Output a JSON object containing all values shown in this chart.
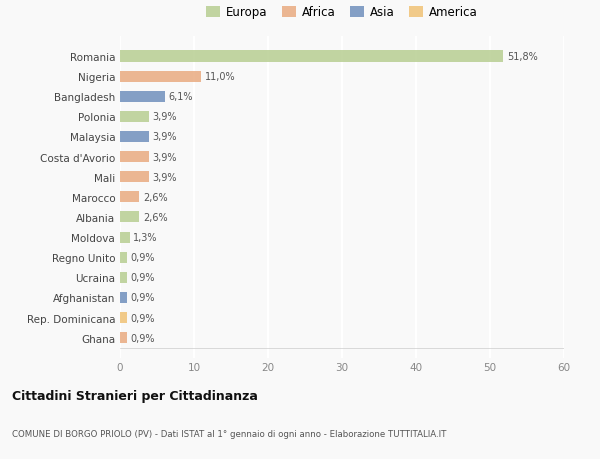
{
  "countries": [
    "Romania",
    "Nigeria",
    "Bangladesh",
    "Polonia",
    "Malaysia",
    "Costa d'Avorio",
    "Mali",
    "Marocco",
    "Albania",
    "Moldova",
    "Regno Unito",
    "Ucraina",
    "Afghanistan",
    "Rep. Dominicana",
    "Ghana"
  ],
  "values": [
    51.8,
    11.0,
    6.1,
    3.9,
    3.9,
    3.9,
    3.9,
    2.6,
    2.6,
    1.3,
    0.9,
    0.9,
    0.9,
    0.9,
    0.9
  ],
  "labels": [
    "51,8%",
    "11,0%",
    "6,1%",
    "3,9%",
    "3,9%",
    "3,9%",
    "3,9%",
    "2,6%",
    "2,6%",
    "1,3%",
    "0,9%",
    "0,9%",
    "0,9%",
    "0,9%",
    "0,9%"
  ],
  "colors": [
    "#b5cc8e",
    "#e8a87c",
    "#6b8cba",
    "#b5cc8e",
    "#6b8cba",
    "#e8a87c",
    "#e8a87c",
    "#e8a87c",
    "#b5cc8e",
    "#b5cc8e",
    "#b5cc8e",
    "#b5cc8e",
    "#6b8cba",
    "#f0c070",
    "#e8a87c"
  ],
  "legend_labels": [
    "Europa",
    "Africa",
    "Asia",
    "America"
  ],
  "legend_colors": [
    "#b5cc8e",
    "#e8a87c",
    "#6b8cba",
    "#f0c070"
  ],
  "title": "Cittadini Stranieri per Cittadinanza",
  "subtitle": "COMUNE DI BORGO PRIOLO (PV) - Dati ISTAT al 1° gennaio di ogni anno - Elaborazione TUTTITALIA.IT",
  "xlim": [
    0,
    60
  ],
  "xticks": [
    0,
    10,
    20,
    30,
    40,
    50,
    60
  ],
  "bg_color": "#f9f9f9",
  "grid_color": "#ffffff",
  "bar_height": 0.55
}
